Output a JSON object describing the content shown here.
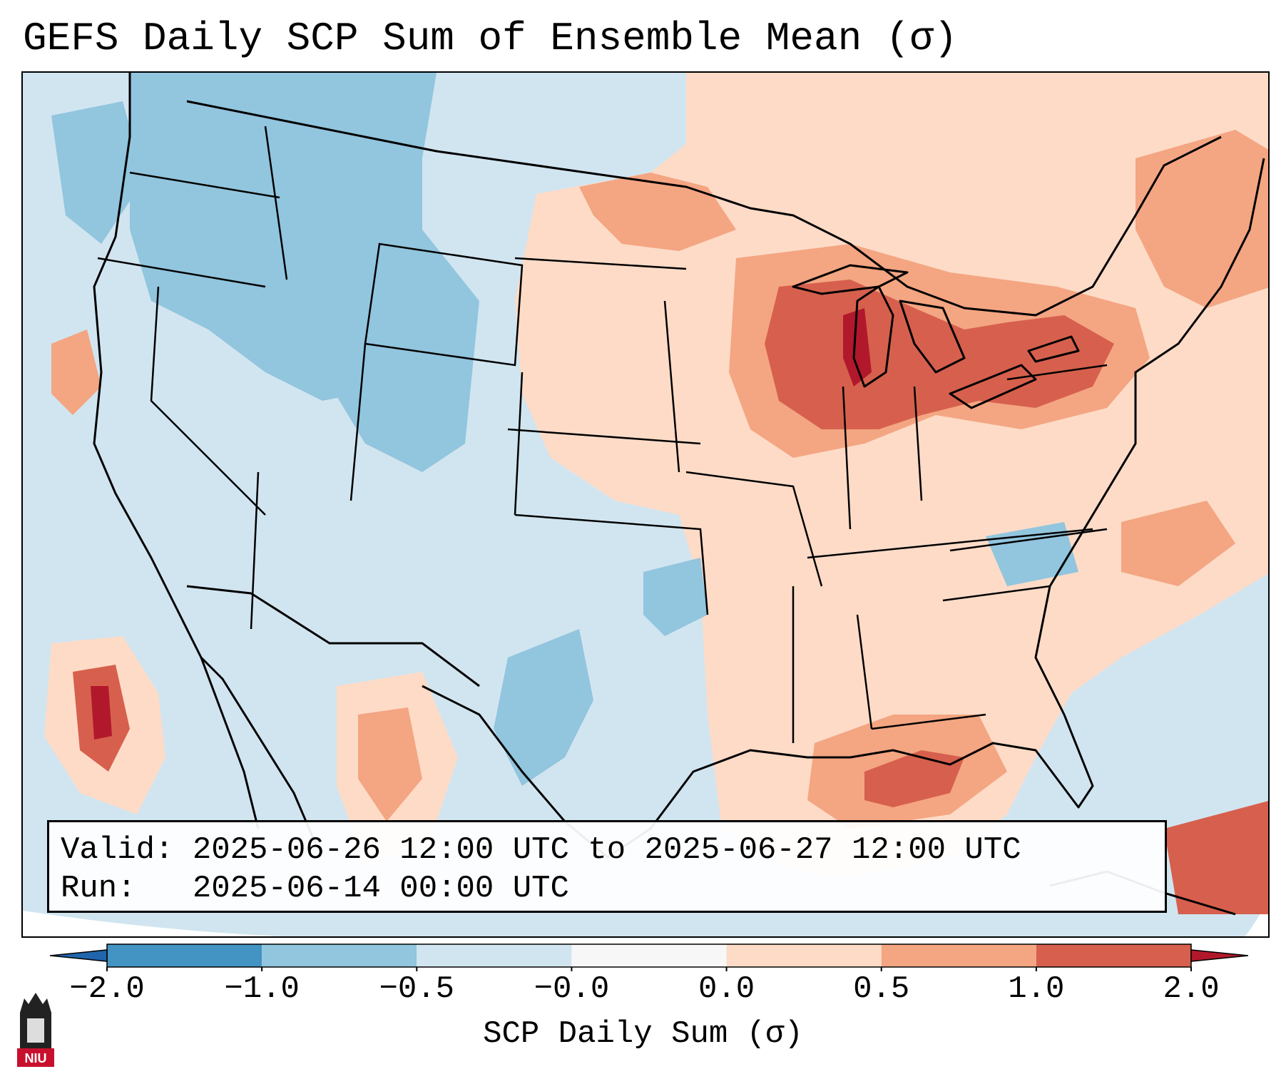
{
  "title": "GEFS Daily SCP Sum of Ensemble Mean (σ)",
  "info": {
    "valid_label": "Valid:",
    "valid_value": "2025-06-26 12:00 UTC to 2025-06-27 12:00 UTC",
    "run_label": "Run:",
    "run_value": "2025-06-14 00:00 UTC"
  },
  "colorbar": {
    "label": "SCP Daily Sum (σ)",
    "ticks": [
      "−2.0",
      "−1.0",
      "−0.5",
      "−0.0",
      "0.0",
      "0.5",
      "1.0",
      "2.0"
    ],
    "segments": [
      {
        "from": "-2.0",
        "to": "-1.0",
        "color": "#4393c3"
      },
      {
        "from": "-1.0",
        "to": "-0.5",
        "color": "#92c5de"
      },
      {
        "from": "-0.5",
        "to": "-0.0",
        "color": "#d1e5f0"
      },
      {
        "from": "-0.0",
        "to": "0.0",
        "color": "#f7f7f7"
      },
      {
        "from": "0.0",
        "to": "0.5",
        "color": "#fddbc7"
      },
      {
        "from": "0.5",
        "to": "1.0",
        "color": "#f4a582"
      },
      {
        "from": "1.0",
        "to": "2.0",
        "color": "#d6604d"
      }
    ],
    "under_color": "#2166ac",
    "over_color": "#b2182b"
  },
  "logo": {
    "text": "NIU",
    "color": "#c8102e"
  }
}
